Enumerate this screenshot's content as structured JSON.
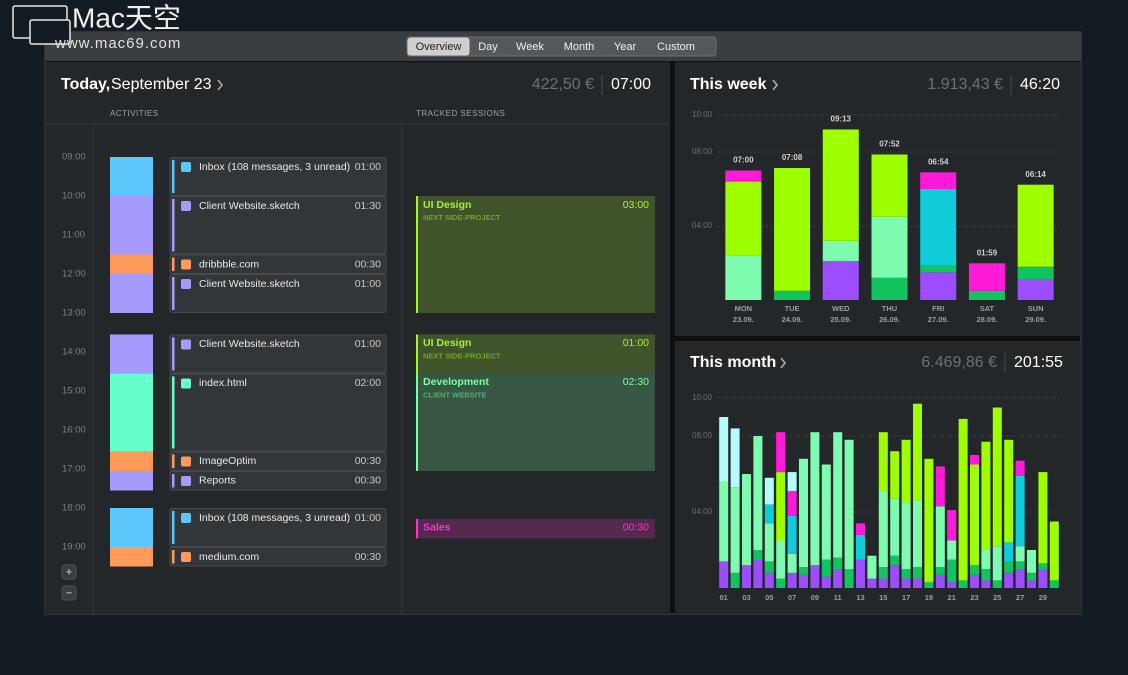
{
  "watermark": {
    "brand": "Mac天空",
    "url": "www.mac69.com"
  },
  "toolbar": {
    "tabs": [
      "Overview",
      "Day",
      "Week",
      "Month",
      "Year",
      "Custom"
    ],
    "active_tab": 0
  },
  "today": {
    "title": "Today,",
    "date": "September 23",
    "amount": "422,50 €",
    "duration": "07:00",
    "columns": [
      "ACTIVITIES",
      "TRACKED SESSIONS"
    ],
    "hours": [
      "09:00",
      "10:00",
      "11:00",
      "12:00",
      "13:00",
      "14:00",
      "15:00",
      "16:00",
      "17:00",
      "18:00",
      "19:00"
    ],
    "activity_groups": [
      [
        {
          "name": "Inbox (108 messages, 3 unread)",
          "duration": "01:00",
          "color": "#5ac8fa"
        },
        {
          "name": "Client Website.sketch",
          "duration": "01:30",
          "color": "#a59bff"
        },
        {
          "name": "dribbble.com",
          "duration": "00:30",
          "color": "#ff9a5a"
        },
        {
          "name": "Client Website.sketch",
          "duration": "01:00",
          "color": "#a59bff"
        }
      ],
      [
        {
          "name": "Client Website.sketch",
          "duration": "01:00",
          "color": "#a59bff"
        },
        {
          "name": "index.html",
          "duration": "02:00",
          "color": "#66ffcc"
        },
        {
          "name": "ImageOptim",
          "duration": "00:30",
          "color": "#ff9a5a"
        },
        {
          "name": "Reports",
          "duration": "00:30",
          "color": "#a59bff"
        }
      ],
      [
        {
          "name": "Inbox (108 messages, 3 unread)",
          "duration": "01:00",
          "color": "#5ac8fa"
        },
        {
          "name": "medium.com",
          "duration": "00:30",
          "color": "#ff9a5a"
        }
      ]
    ],
    "sessions": [
      {
        "title": "UI Design",
        "subtitle": "NEXT SIDE-PROJECT",
        "duration": "03:00",
        "color": "#a6f22e"
      },
      {
        "title": "UI Design",
        "subtitle": "NEXT SIDE-PROJECT",
        "duration": "01:00",
        "color": "#a6f22e"
      },
      {
        "title": "Development",
        "subtitle": "CLIENT WEBSITE",
        "duration": "02:30",
        "color": "#7dffa0"
      },
      {
        "title": "Sales",
        "subtitle": null,
        "duration": "00:30",
        "color": "#ff33cc"
      }
    ],
    "zoom": [
      "+",
      "−"
    ]
  },
  "week": {
    "title": "This week",
    "amount": "1.913,43 €",
    "duration": "46:20",
    "chart_data": {
      "type": "bar",
      "stacked": true,
      "categories": [
        "MON",
        "TUE",
        "WED",
        "THU",
        "FRI",
        "SAT",
        "SUN"
      ],
      "dates": [
        "23.09.",
        "24.09.",
        "25.09.",
        "26.09.",
        "27.09.",
        "28.09.",
        "29.09."
      ],
      "ylim": [
        0,
        10
      ],
      "yticks": [
        {
          "value": 4,
          "label": "04:00"
        },
        {
          "value": 8,
          "label": "08:00"
        },
        {
          "value": 10,
          "label": "10:00"
        }
      ],
      "grid": true,
      "series": [
        {
          "color": "#9b4dff",
          "values": [
            0,
            0,
            2.1,
            0,
            1.5,
            0,
            1.1
          ]
        },
        {
          "color": "#12c460",
          "values": [
            0,
            0.5,
            0,
            1.2,
            0.35,
            0.5,
            0.7
          ]
        },
        {
          "color": "#7dfcb0",
          "values": [
            2.4,
            0,
            1.1,
            3.3,
            0,
            0,
            0
          ]
        },
        {
          "color": "#10ccd8",
          "values": [
            0,
            0,
            0,
            0,
            4.15,
            0,
            0
          ]
        },
        {
          "color": "#9dff00",
          "values": [
            4.0,
            6.633,
            6.017,
            3.367,
            0,
            0,
            4.433
          ]
        },
        {
          "color": "#ff1ad9",
          "values": [
            0.6,
            0,
            0,
            0,
            0.9,
            1.483,
            0
          ]
        }
      ],
      "totals": [
        7,
        7.133,
        9.217,
        7.867,
        6.9,
        1.983,
        6.233
      ],
      "value_labels": [
        "07:00",
        "07:08",
        "09:13",
        "07:52",
        "06:54",
        "01:59",
        "06:14"
      ]
    }
  },
  "month": {
    "title": "This month",
    "amount": "6.469,86 €",
    "duration": "201:55",
    "chart_data": {
      "type": "bar",
      "stacked": true,
      "categories": [
        "01",
        null,
        "03",
        null,
        "05",
        null,
        "07",
        null,
        "09",
        null,
        "11",
        null,
        "13",
        null,
        "15",
        null,
        "17",
        null,
        "19",
        null,
        "21",
        null,
        "23",
        null,
        "25",
        null,
        "27",
        null,
        "29",
        null
      ],
      "ylim": [
        0,
        10
      ],
      "yticks": [
        {
          "value": 4,
          "label": "04:00"
        },
        {
          "value": 8,
          "label": "08:00"
        },
        {
          "value": 10,
          "label": "10:00"
        }
      ],
      "grid": true,
      "series": [
        {
          "color": "#9b4dff",
          "values": [
            1.4,
            0,
            1.2,
            1.5,
            0.8,
            0,
            0.8,
            0.7,
            1.2,
            0.6,
            1.0,
            0,
            1.5,
            0.5,
            0.5,
            1.2,
            0.5,
            0.5,
            0,
            0.7,
            0.3,
            0,
            0.7,
            0.4,
            0,
            0.8,
            1.0,
            0.4,
            1.0,
            0
          ]
        },
        {
          "color": "#12c460",
          "values": [
            0,
            0.8,
            0,
            0.5,
            0.6,
            0.5,
            0,
            0.4,
            0,
            0.9,
            0.6,
            1.0,
            0,
            0,
            0.6,
            0.5,
            0.5,
            0.6,
            0.3,
            0.4,
            1.2,
            0.4,
            0.5,
            0.6,
            0.4,
            0.6,
            0.4,
            0.4,
            0.3,
            0.4
          ]
        },
        {
          "color": "#7dfcb0",
          "values": [
            4.2,
            4.5,
            4.8,
            6.0,
            2.0,
            2.0,
            1.0,
            5.7,
            7.0,
            5.0,
            6.6,
            6.8,
            0,
            1.2,
            4.0,
            3.0,
            3.5,
            3.5,
            0,
            3.2,
            1.0,
            0,
            0,
            1.0,
            1.8,
            0,
            0.8,
            1.2,
            0,
            0
          ]
        },
        {
          "color": "#10ccd8",
          "values": [
            0,
            0,
            0,
            0,
            1.0,
            0,
            2.0,
            0,
            0,
            0,
            0,
            0,
            1.3,
            0,
            0,
            0,
            0,
            0,
            0,
            0,
            0,
            0,
            0,
            0,
            0,
            1.0,
            3.7,
            0,
            0,
            0
          ]
        },
        {
          "color": "#9dff00",
          "values": [
            0,
            0,
            0,
            0,
            0,
            3.6,
            0,
            0,
            0,
            0,
            0,
            0,
            0,
            0,
            3.1,
            2.5,
            3.3,
            5.1,
            6.5,
            0,
            0,
            8.5,
            5.3,
            5.7,
            7.3,
            5.4,
            0,
            0,
            4.8,
            3.1
          ]
        },
        {
          "color": "#ff1ad9",
          "values": [
            0,
            0,
            0,
            0,
            0,
            2.1,
            1.3,
            0,
            0,
            0,
            0,
            0,
            0.6,
            0,
            0,
            0,
            0,
            0,
            0,
            2.1,
            1.6,
            0,
            0.5,
            0,
            0,
            0,
            0.8,
            0,
            0,
            0
          ]
        },
        {
          "color": "#b5fdfd",
          "values": [
            3.4,
            3.1,
            0,
            0,
            1.4,
            0,
            1.0,
            0,
            0,
            0,
            0,
            0,
            0,
            0,
            0,
            0,
            0,
            0,
            0,
            0,
            0,
            0,
            0,
            0,
            0,
            0,
            0,
            0,
            0,
            0
          ]
        }
      ]
    }
  }
}
